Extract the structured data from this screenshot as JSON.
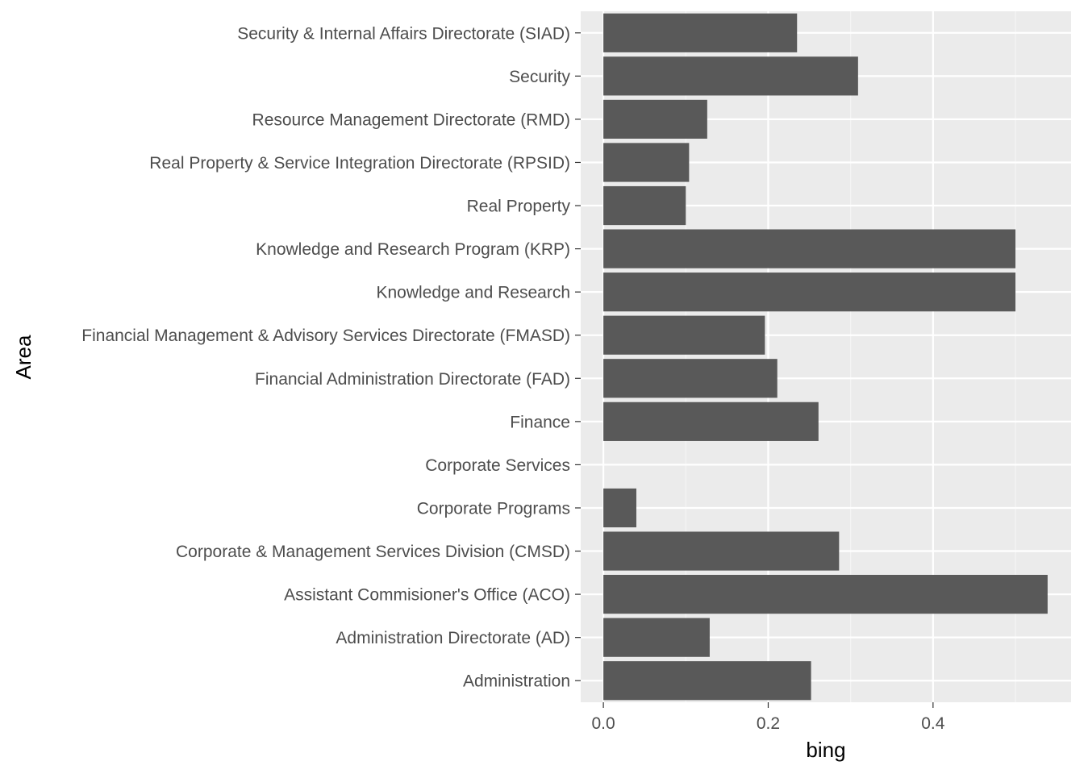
{
  "chart_data": {
    "type": "bar",
    "orientation": "horizontal",
    "xlabel": "bing",
    "ylabel": "Area",
    "xlim": [
      -0.0275,
      0.5675
    ],
    "x_ticks": [
      0.0,
      0.2,
      0.4
    ],
    "x_tick_labels": [
      "0.0",
      "0.2",
      "0.4"
    ],
    "grid": true,
    "categories": [
      "Security & Internal Affairs Directorate (SIAD)",
      "Security",
      "Resource Management Directorate (RMD)",
      "Real Property & Service Integration Directorate (RPSID)",
      "Real Property",
      "Knowledge and Research Program (KRP)",
      "Knowledge and Research",
      "Financial Management & Advisory Services Directorate (FMASD)",
      "Financial Administration Directorate (FAD)",
      "Finance",
      "Corporate Services",
      "Corporate Programs",
      "Corporate & Management Services Division (CMSD)",
      "Assistant Commisioner's Office (ACO)",
      "Administration Directorate (AD)",
      "Administration"
    ],
    "values": [
      0.235,
      0.309,
      0.126,
      0.104,
      0.1,
      0.5,
      0.5,
      0.196,
      0.211,
      0.261,
      0.0,
      0.04,
      0.286,
      0.539,
      0.129,
      0.252
    ],
    "colors": {
      "panel": "#ebebeb",
      "grid_major": "#ffffff",
      "grid_minor": "#f5f5f5",
      "bar": "#595959",
      "tick_text": "#4d4d4d",
      "tick_mark": "#333333"
    }
  }
}
